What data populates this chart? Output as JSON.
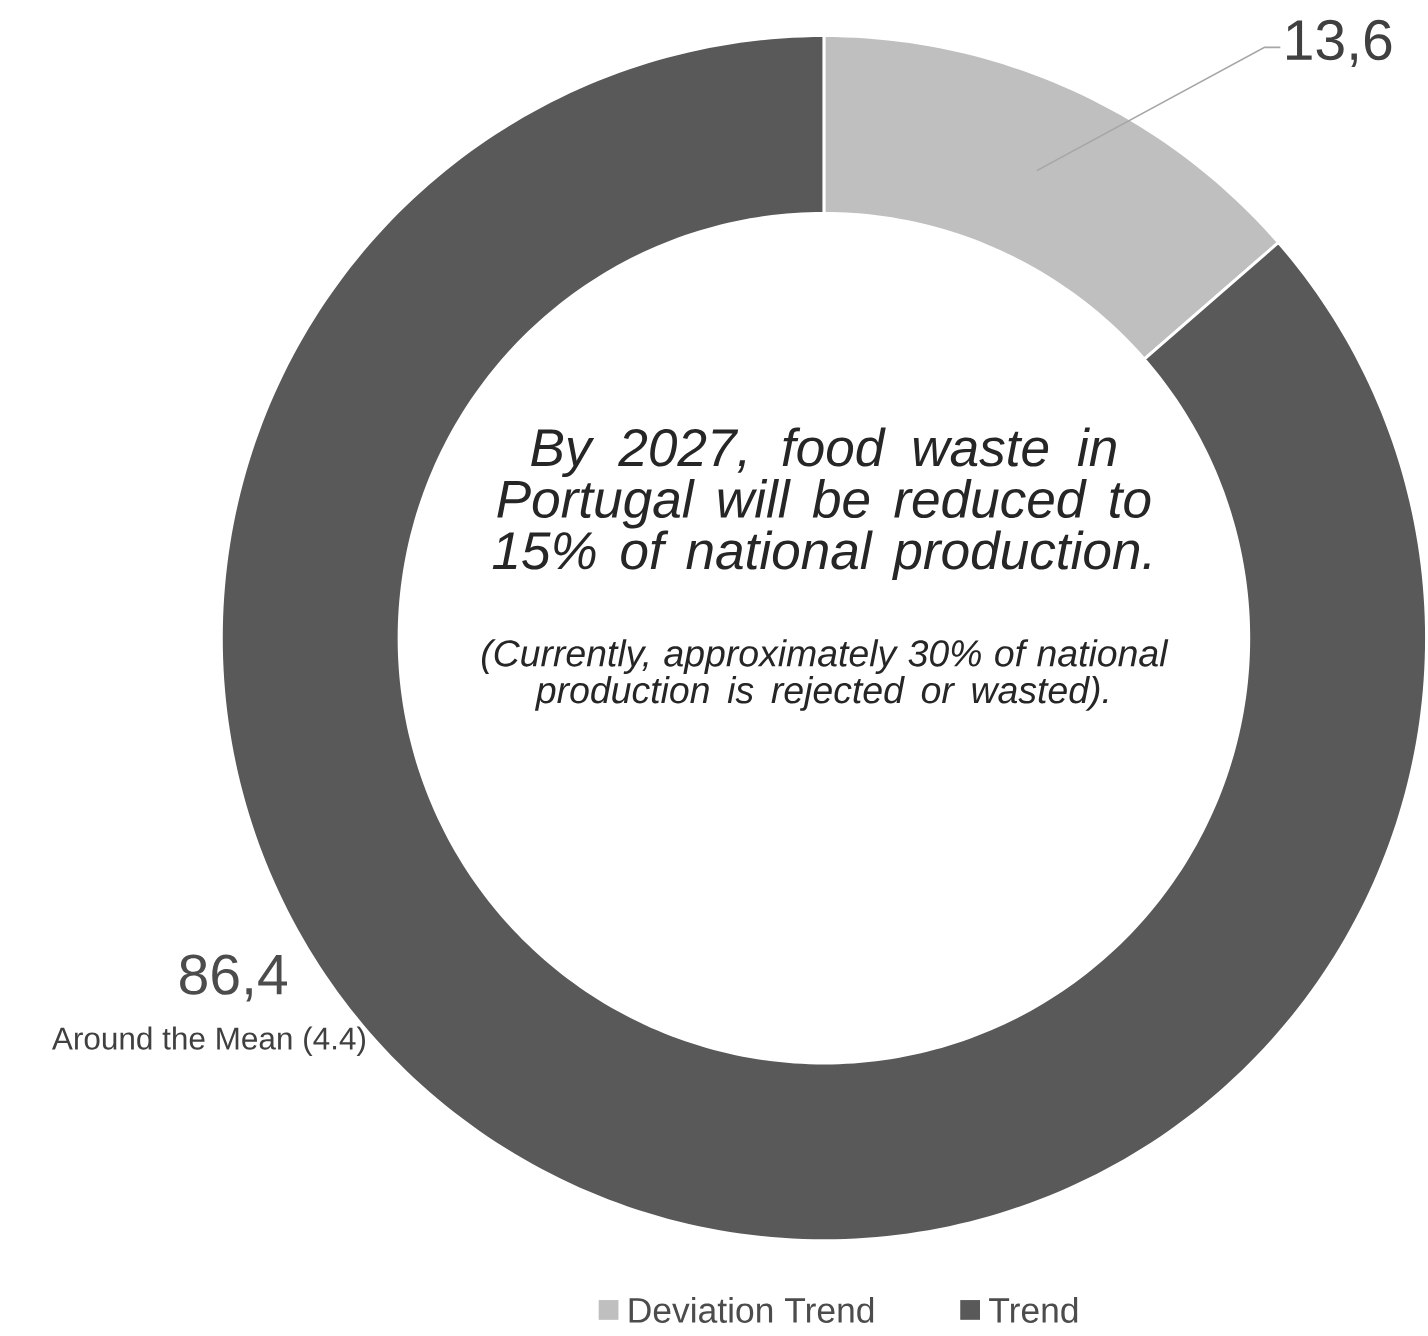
{
  "chart_data": {
    "type": "donut",
    "categories": [
      "Deviation Trend",
      "Trend"
    ],
    "values": [
      13.6,
      86.4
    ],
    "value_labels": [
      "13,6",
      "86,4"
    ],
    "colors": [
      "#bfbfbf",
      "#595959"
    ],
    "legend": "bottom",
    "annotations": [
      "By 2027, food waste in Portugal will be reduced to 15% of national production.",
      "(Currently, approximately 30% of national production is rejected or wasted).",
      "Around  the Mean (4.4)"
    ]
  }
}
